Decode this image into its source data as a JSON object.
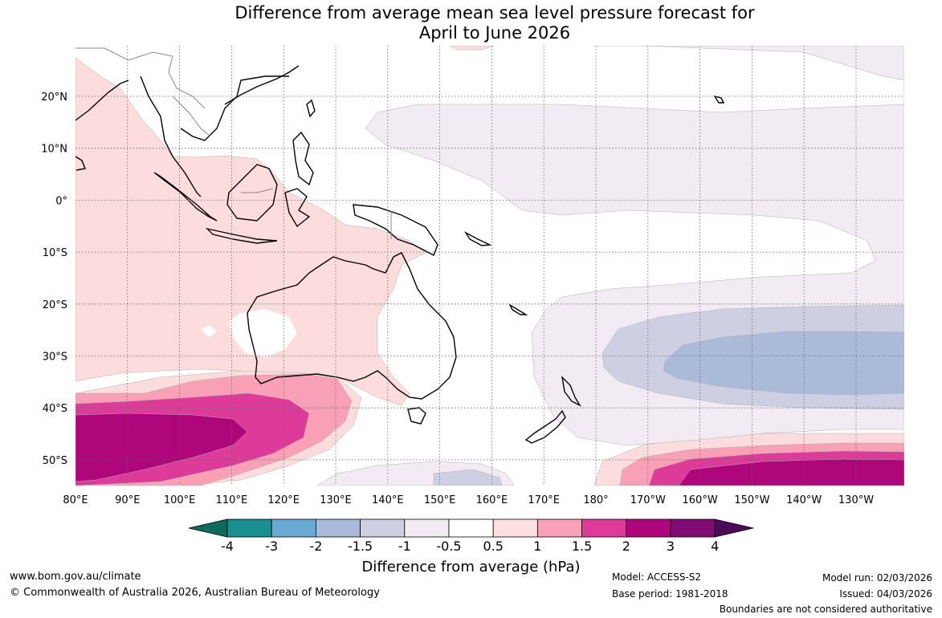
{
  "title": {
    "line1": "Difference from average mean sea level pressure forecast for",
    "line2": "April to June 2026"
  },
  "map": {
    "lon_labels": [
      "80°E",
      "90°E",
      "100°E",
      "110°E",
      "120°E",
      "130°E",
      "140°E",
      "150°E",
      "160°E",
      "170°E",
      "180°",
      "170°W",
      "160°W",
      "150°W",
      "140°W",
      "130°W"
    ],
    "lat_labels": [
      "20°N",
      "10°N",
      "0°",
      "10°S",
      "20°S",
      "30°S",
      "40°S",
      "50°S"
    ],
    "colors": {
      "neg_0_5": "#f3ebf3",
      "neg_1": "#cfcfe3",
      "neg_1_5": "#a9bbd9",
      "pos_0_5": "#fcdcdc",
      "pos_1": "#f7a0b6",
      "pos_1_5": "#de3a9a",
      "pos_2": "#b0067c",
      "pos_3": "#7e0c72",
      "land": "#000000",
      "grid": "#666666"
    }
  },
  "colorbar": {
    "label": "Difference from average (hPa)",
    "ticks": [
      "-4",
      "-3",
      "-2",
      "-1.5",
      "-1",
      "-0.5",
      "0.5",
      "1",
      "1.5",
      "2",
      "3",
      "4"
    ],
    "colors": [
      "#0e6b5c",
      "#1a8f92",
      "#68aad2",
      "#a9bbd9",
      "#cfcfe3",
      "#f3ebf3",
      "#ffffff",
      "#fce0e0",
      "#f7a0b6",
      "#de3a9a",
      "#b0067c",
      "#7e0c72",
      "#4d0a5a"
    ]
  },
  "footer": {
    "website": "www.bom.gov.au/climate",
    "copyright": "© Commonwealth of Australia 2026, Australian Bureau of Meteorology",
    "model": "Model: ACCESS-S2",
    "base_period": "Base period: 1981-2018",
    "model_run": "Model run: 02/03/2026",
    "issued": "Issued: 04/03/2026",
    "boundaries": "Boundaries are not considered authoritative"
  }
}
